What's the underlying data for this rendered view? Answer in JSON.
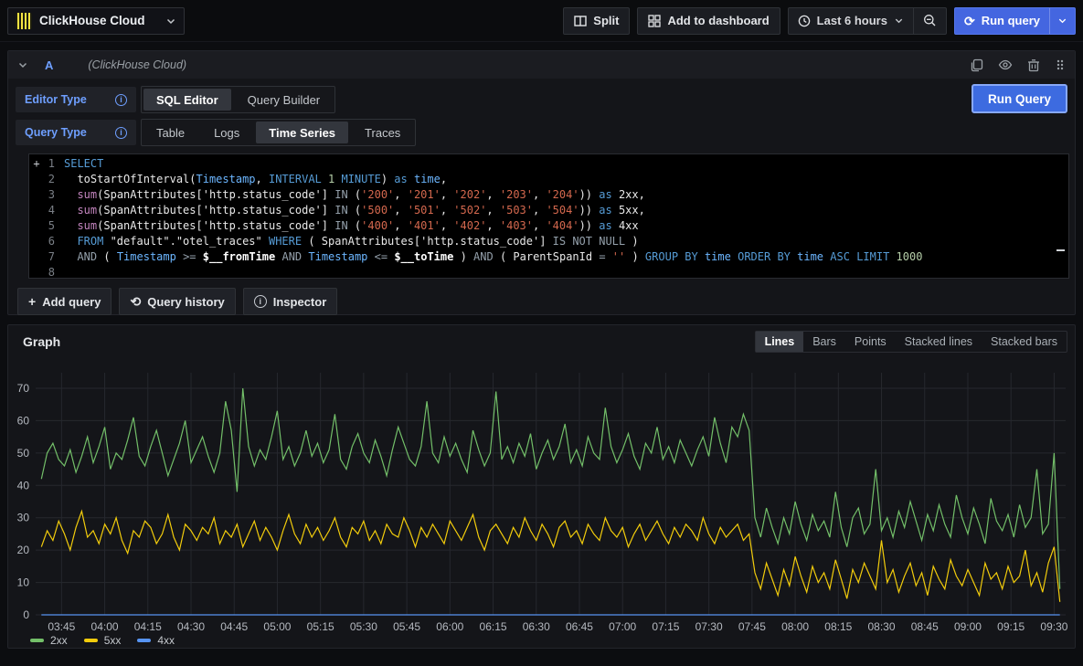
{
  "topbar": {
    "datasource": {
      "name": "ClickHouse Cloud"
    },
    "split_label": "Split",
    "add_to_dashboard_label": "Add to dashboard",
    "time_range_label": "Last 6 hours",
    "run_query_label": "Run query"
  },
  "query_panel": {
    "ref_id": "A",
    "datasource_hint": "(ClickHouse Cloud)",
    "editor_type": {
      "label": "Editor Type",
      "options": [
        "SQL Editor",
        "Query Builder"
      ],
      "active": 0
    },
    "query_type": {
      "label": "Query Type",
      "options": [
        "Table",
        "Logs",
        "Time Series",
        "Traces"
      ],
      "active": 2
    },
    "run_query_label": "Run Query",
    "sql": {
      "lines": [
        [
          [
            "kw",
            "SELECT"
          ]
        ],
        [
          [
            "pl",
            "  toStartOfInterval("
          ],
          [
            "id",
            "Timestamp"
          ],
          [
            "pl",
            ", "
          ],
          [
            "kw",
            "INTERVAL"
          ],
          [
            "pl",
            " "
          ],
          [
            "num",
            "1"
          ],
          [
            "pl",
            " "
          ],
          [
            "kw",
            "MINUTE"
          ],
          [
            "pl",
            ") "
          ],
          [
            "kw",
            "as"
          ],
          [
            "pl",
            " "
          ],
          [
            "id",
            "time"
          ],
          [
            "pl",
            ","
          ]
        ],
        [
          [
            "pl",
            "  "
          ],
          [
            "fn",
            "sum"
          ],
          [
            "pl",
            "(SpanAttributes['http.status_code'] "
          ],
          [
            "op",
            "IN"
          ],
          [
            "pl",
            " ("
          ],
          [
            "str",
            "'200'"
          ],
          [
            "pl",
            ", "
          ],
          [
            "str",
            "'201'"
          ],
          [
            "pl",
            ", "
          ],
          [
            "str",
            "'202'"
          ],
          [
            "pl",
            ", "
          ],
          [
            "str",
            "'203'"
          ],
          [
            "pl",
            ", "
          ],
          [
            "str",
            "'204'"
          ],
          [
            "pl",
            ")) "
          ],
          [
            "kw",
            "as"
          ],
          [
            "pl",
            " 2xx,"
          ]
        ],
        [
          [
            "pl",
            "  "
          ],
          [
            "fn",
            "sum"
          ],
          [
            "pl",
            "(SpanAttributes['http.status_code'] "
          ],
          [
            "op",
            "IN"
          ],
          [
            "pl",
            " ("
          ],
          [
            "str",
            "'500'"
          ],
          [
            "pl",
            ", "
          ],
          [
            "str",
            "'501'"
          ],
          [
            "pl",
            ", "
          ],
          [
            "str",
            "'502'"
          ],
          [
            "pl",
            ", "
          ],
          [
            "str",
            "'503'"
          ],
          [
            "pl",
            ", "
          ],
          [
            "str",
            "'504'"
          ],
          [
            "pl",
            ")) "
          ],
          [
            "kw",
            "as"
          ],
          [
            "pl",
            " 5xx,"
          ]
        ],
        [
          [
            "pl",
            "  "
          ],
          [
            "fn",
            "sum"
          ],
          [
            "pl",
            "(SpanAttributes['http.status_code'] "
          ],
          [
            "op",
            "IN"
          ],
          [
            "pl",
            " ("
          ],
          [
            "str",
            "'400'"
          ],
          [
            "pl",
            ", "
          ],
          [
            "str",
            "'401'"
          ],
          [
            "pl",
            ", "
          ],
          [
            "str",
            "'402'"
          ],
          [
            "pl",
            ", "
          ],
          [
            "str",
            "'403'"
          ],
          [
            "pl",
            ", "
          ],
          [
            "str",
            "'404'"
          ],
          [
            "pl",
            ")) "
          ],
          [
            "kw",
            "as"
          ],
          [
            "pl",
            " 4xx"
          ]
        ],
        [
          [
            "pl",
            "  "
          ],
          [
            "kw",
            "FROM"
          ],
          [
            "pl",
            " \"default\".\"otel_traces\" "
          ],
          [
            "kw",
            "WHERE"
          ],
          [
            "pl",
            " ( SpanAttributes['http.status_code'] "
          ],
          [
            "op",
            "IS NOT NULL"
          ],
          [
            "pl",
            " )"
          ]
        ],
        [
          [
            "pl",
            "  "
          ],
          [
            "op",
            "AND"
          ],
          [
            "pl",
            " ( "
          ],
          [
            "id",
            "Timestamp"
          ],
          [
            "op",
            " >= "
          ],
          [
            "var",
            "$__fromTime"
          ],
          [
            "op",
            " AND "
          ],
          [
            "id",
            "Timestamp"
          ],
          [
            "op",
            " <= "
          ],
          [
            "var",
            "$__toTime"
          ],
          [
            "pl",
            " ) "
          ],
          [
            "op",
            "AND"
          ],
          [
            "pl",
            " ( ParentSpanId "
          ],
          [
            "op",
            "="
          ],
          [
            "pl",
            " "
          ],
          [
            "str",
            "''"
          ],
          [
            "pl",
            " ) "
          ],
          [
            "kw",
            "GROUP BY"
          ],
          [
            "pl",
            " "
          ],
          [
            "id",
            "time"
          ],
          [
            "pl",
            " "
          ],
          [
            "kw",
            "ORDER BY"
          ],
          [
            "pl",
            " "
          ],
          [
            "id",
            "time"
          ],
          [
            "pl",
            " "
          ],
          [
            "kw",
            "ASC"
          ],
          [
            "pl",
            " "
          ],
          [
            "kw",
            "LIMIT"
          ],
          [
            "pl",
            " "
          ],
          [
            "num",
            "1000"
          ]
        ],
        []
      ]
    },
    "footer": {
      "add_query": "Add query",
      "query_history": "Query history",
      "inspector": "Inspector"
    }
  },
  "graph_panel": {
    "title": "Graph",
    "view_modes": {
      "options": [
        "Lines",
        "Bars",
        "Points",
        "Stacked lines",
        "Stacked bars"
      ],
      "active": 0
    }
  },
  "chart_data": {
    "type": "line",
    "title": "Graph",
    "xlabel": "",
    "ylabel": "",
    "ylim": [
      0,
      70
    ],
    "y_ticks": [
      0,
      10,
      20,
      30,
      40,
      50,
      60,
      70
    ],
    "grid": true,
    "legend_position": "bottom-left",
    "x_axis": {
      "window_start_min": 216,
      "window_end_min": 574,
      "data_start_min": 218,
      "step_minutes": 2,
      "tick_interval_min": 15,
      "tick_labels": [
        "03:45",
        "04:00",
        "04:15",
        "04:30",
        "04:45",
        "05:00",
        "05:15",
        "05:30",
        "05:45",
        "06:00",
        "06:15",
        "06:30",
        "06:45",
        "07:00",
        "07:15",
        "07:30",
        "07:45",
        "08:00",
        "08:15",
        "08:30",
        "08:45",
        "09:00",
        "09:15",
        "09:30"
      ]
    },
    "series": [
      {
        "name": "2xx",
        "color": "#73bf69",
        "values": [
          42,
          50,
          53,
          48,
          46,
          51,
          44,
          49,
          55,
          47,
          52,
          58,
          45,
          50,
          48,
          54,
          61,
          49,
          46,
          52,
          57,
          50,
          43,
          48,
          53,
          60,
          47,
          51,
          55,
          49,
          44,
          50,
          66,
          57,
          38,
          70,
          52,
          46,
          51,
          48,
          55,
          63,
          48,
          52,
          46,
          50,
          57,
          49,
          53,
          47,
          51,
          62,
          48,
          45,
          52,
          56,
          50,
          47,
          54,
          49,
          43,
          51,
          58,
          53,
          48,
          46,
          52,
          66,
          50,
          47,
          55,
          49,
          53,
          48,
          44,
          57,
          51,
          46,
          50,
          69,
          48,
          52,
          47,
          53,
          49,
          56,
          45,
          50,
          54,
          48,
          52,
          59,
          47,
          51,
          46,
          55,
          50,
          48,
          64,
          52,
          47,
          51,
          56,
          49,
          45,
          53,
          50,
          58,
          48,
          52,
          47,
          54,
          50,
          46,
          51,
          55,
          49,
          61,
          53,
          47,
          58,
          55,
          62,
          57,
          30,
          24,
          33,
          27,
          22,
          30,
          25,
          35,
          28,
          23,
          31,
          26,
          29,
          24,
          38,
          27,
          21,
          30,
          33,
          25,
          28,
          45,
          26,
          30,
          24,
          32,
          27,
          35,
          29,
          23,
          31,
          26,
          34,
          28,
          24,
          37,
          30,
          25,
          33,
          28,
          22,
          36,
          29,
          26,
          31,
          24,
          34,
          27,
          30,
          45,
          25,
          28,
          50,
          8
        ]
      },
      {
        "name": "5xx",
        "color": "#f2cc0c",
        "values": [
          21,
          26,
          23,
          29,
          25,
          20,
          27,
          32,
          24,
          26,
          22,
          28,
          25,
          30,
          23,
          19,
          26,
          24,
          29,
          27,
          22,
          25,
          31,
          24,
          20,
          28,
          26,
          23,
          27,
          25,
          30,
          22,
          26,
          24,
          28,
          21,
          25,
          29,
          23,
          27,
          24,
          20,
          26,
          31,
          25,
          22,
          28,
          24,
          27,
          23,
          26,
          30,
          24,
          21,
          27,
          25,
          29,
          23,
          26,
          22,
          28,
          25,
          24,
          30,
          26,
          21,
          27,
          24,
          28,
          25,
          22,
          29,
          26,
          23,
          27,
          31,
          24,
          20,
          26,
          28,
          25,
          22,
          27,
          24,
          30,
          26,
          23,
          28,
          25,
          21,
          27,
          29,
          24,
          26,
          22,
          28,
          25,
          23,
          30,
          26,
          24,
          27,
          21,
          25,
          28,
          23,
          26,
          29,
          25,
          22,
          27,
          24,
          28,
          26,
          23,
          30,
          25,
          22,
          27,
          24,
          26,
          28,
          23,
          25,
          13,
          8,
          16,
          11,
          6,
          14,
          9,
          18,
          12,
          7,
          15,
          10,
          13,
          8,
          17,
          11,
          5,
          14,
          10,
          16,
          12,
          8,
          23,
          10,
          14,
          7,
          12,
          16,
          9,
          13,
          6,
          15,
          11,
          8,
          17,
          12,
          9,
          14,
          10,
          6,
          16,
          11,
          13,
          8,
          15,
          10,
          12,
          20,
          9,
          13,
          7,
          16,
          21,
          4
        ]
      },
      {
        "name": "4xx",
        "color": "#5794f2",
        "constant": 0
      }
    ]
  }
}
